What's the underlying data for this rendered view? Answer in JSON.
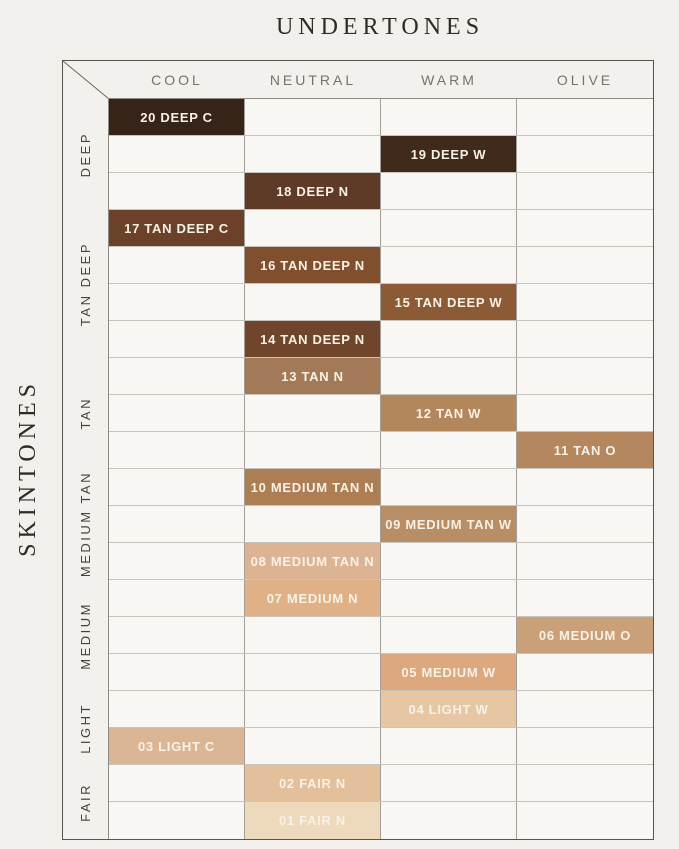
{
  "title": "UNDERTONES",
  "side_title": "SKINTONES",
  "chart_data": {
    "type": "table",
    "title": "UNDERTONES",
    "ylabel": "SKINTONES",
    "columns": [
      "COOL",
      "NEUTRAL",
      "WARM",
      "OLIVE"
    ],
    "row_groups": [
      {
        "label": "DEEP",
        "rows": 3
      },
      {
        "label": "TAN DEEP",
        "rows": 4
      },
      {
        "label": "TAN",
        "rows": 3
      },
      {
        "label": "MEDIUM TAN",
        "rows": 3
      },
      {
        "label": "MEDIUM",
        "rows": 3
      },
      {
        "label": "LIGHT",
        "rows": 2
      },
      {
        "label": "FAIR",
        "rows": 2
      }
    ],
    "shades": [
      {
        "label": "20 DEEP C",
        "undertone": "COOL",
        "skintone": "DEEP",
        "col": 0,
        "color": "#362419"
      },
      {
        "label": "19 DEEP W",
        "undertone": "WARM",
        "skintone": "DEEP",
        "col": 2,
        "color": "#3f2a1b"
      },
      {
        "label": "18 DEEP N",
        "undertone": "NEUTRAL",
        "skintone": "DEEP",
        "col": 1,
        "color": "#5e3b26"
      },
      {
        "label": "17 TAN DEEP C",
        "undertone": "COOL",
        "skintone": "TAN DEEP",
        "col": 0,
        "color": "#6b4229"
      },
      {
        "label": "16 TAN DEEP N",
        "undertone": "NEUTRAL",
        "skintone": "TAN DEEP",
        "col": 1,
        "color": "#7f4f2e"
      },
      {
        "label": "15 TAN DEEP W",
        "undertone": "WARM",
        "skintone": "TAN DEEP",
        "col": 2,
        "color": "#8d5a36"
      },
      {
        "label": "14 TAN DEEP N",
        "undertone": "NEUTRAL",
        "skintone": "TAN DEEP",
        "col": 1,
        "color": "#6f462b"
      },
      {
        "label": "13 TAN N",
        "undertone": "NEUTRAL",
        "skintone": "TAN",
        "col": 1,
        "color": "#a37a58"
      },
      {
        "label": "12 TAN W",
        "undertone": "WARM",
        "skintone": "TAN",
        "col": 2,
        "color": "#b3875c"
      },
      {
        "label": "11 TAN O",
        "undertone": "OLIVE",
        "skintone": "TAN",
        "col": 3,
        "color": "#b4875e"
      },
      {
        "label": "10 MEDIUM TAN N",
        "undertone": "NEUTRAL",
        "skintone": "MEDIUM TAN",
        "col": 1,
        "color": "#ad7d54"
      },
      {
        "label": "09 MEDIUM TAN W",
        "undertone": "WARM",
        "skintone": "MEDIUM TAN",
        "col": 2,
        "color": "#b78e66"
      },
      {
        "label": "08 MEDIUM TAN N",
        "undertone": "NEUTRAL",
        "skintone": "MEDIUM TAN",
        "col": 1,
        "color": "#dcb494"
      },
      {
        "label": "07 MEDIUM N",
        "undertone": "NEUTRAL",
        "skintone": "MEDIUM",
        "col": 1,
        "color": "#e0b187"
      },
      {
        "label": "06 MEDIUM O",
        "undertone": "OLIVE",
        "skintone": "MEDIUM",
        "col": 3,
        "color": "#c9a078"
      },
      {
        "label": "05 MEDIUM W",
        "undertone": "WARM",
        "skintone": "MEDIUM",
        "col": 2,
        "color": "#dda87e"
      },
      {
        "label": "04 LIGHT W",
        "undertone": "WARM",
        "skintone": "LIGHT",
        "col": 2,
        "color": "#e7c6a3"
      },
      {
        "label": "03 LIGHT C",
        "undertone": "COOL",
        "skintone": "LIGHT",
        "col": 0,
        "color": "#dbb694"
      },
      {
        "label": "02 FAIR N",
        "undertone": "NEUTRAL",
        "skintone": "FAIR",
        "col": 1,
        "color": "#e3bf9b"
      },
      {
        "label": "01 FAIR N",
        "undertone": "NEUTRAL",
        "skintone": "FAIR",
        "col": 1,
        "color": "#edd9bc"
      }
    ],
    "colors": {
      "swatch_text": "#f8f1e5",
      "grid_outer_border": "#5a544e",
      "grid_inner_line": "#c7c3bd",
      "column_line": "#a39e98",
      "header_text": "#76726c",
      "group_text": "#46423c",
      "title_text": "#2f2b27",
      "cell_background": "#f8f7f4",
      "page_background": "#f2f0ed"
    },
    "layout": {
      "grid": true,
      "legend": false
    }
  }
}
